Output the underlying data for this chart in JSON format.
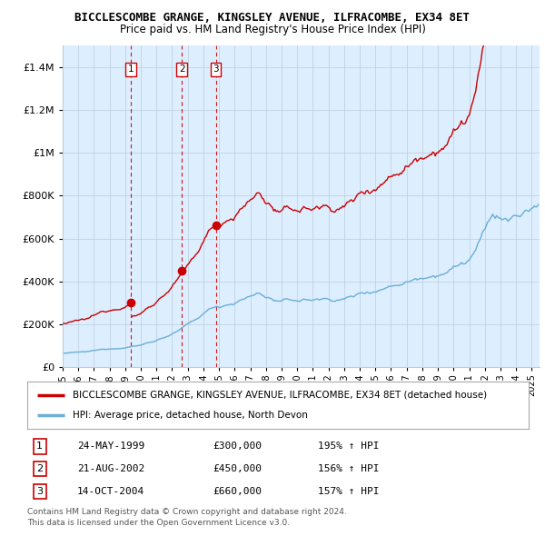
{
  "title1": "BICCLESCOMBE GRANGE, KINGSLEY AVENUE, ILFRACOMBE, EX34 8ET",
  "title2": "Price paid vs. HM Land Registry's House Price Index (HPI)",
  "legend_line1": "BICCLESCOMBE GRANGE, KINGSLEY AVENUE, ILFRACOMBE, EX34 8ET (detached house)",
  "legend_line2": "HPI: Average price, detached house, North Devon",
  "ylim": [
    0,
    1500000
  ],
  "xlim_start": 1995.0,
  "xlim_end": 2025.5,
  "purchases": [
    {
      "label": "1",
      "date": "24-MAY-1999",
      "year": 1999.38,
      "price": 300000,
      "pct": "195%",
      "dir": "↑"
    },
    {
      "label": "2",
      "date": "21-AUG-2002",
      "year": 2002.63,
      "price": 450000,
      "pct": "156%",
      "dir": "↑"
    },
    {
      "label": "3",
      "date": "14-OCT-2004",
      "year": 2004.79,
      "price": 660000,
      "pct": "157%",
      "dir": "↑"
    }
  ],
  "footer1": "Contains HM Land Registry data © Crown copyright and database right 2024.",
  "footer2": "This data is licensed under the Open Government Licence v3.0.",
  "hpi_color": "#6baed6",
  "price_color": "#cc0000",
  "dashed_color": "#cc0000",
  "bg_color": "#ffffff",
  "plot_bg_color": "#ddeeff",
  "grid_color": "#bbccdd"
}
